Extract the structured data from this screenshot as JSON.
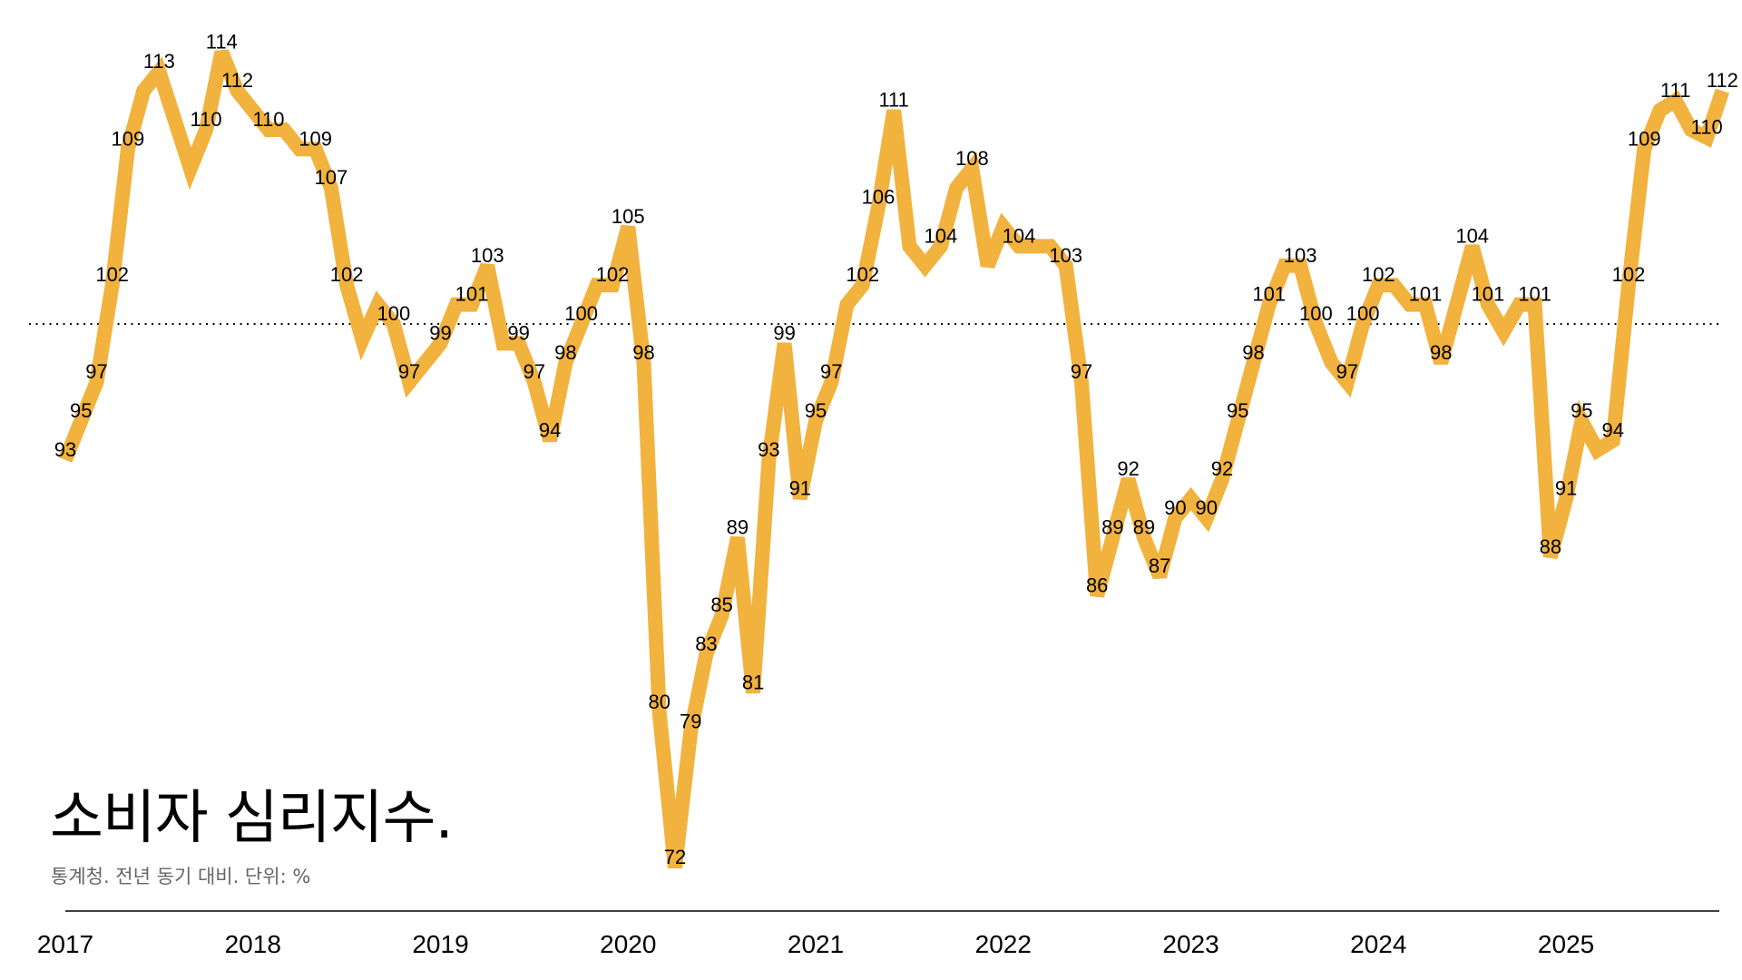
{
  "chart_data": {
    "type": "line",
    "title": "소비자 심리지수.",
    "subtitle": "통계청. 전년 동기 대비. 단위: %",
    "x_start": "2017-01",
    "frequency": "monthly",
    "year_labels": [
      "2017",
      "2018",
      "2019",
      "2020",
      "2021",
      "2022",
      "2023",
      "2024",
      "2025"
    ],
    "reference_line": 100,
    "ylim": [
      70,
      116
    ],
    "line_color": "#F2B23E",
    "values": [
      93,
      95,
      97,
      102,
      109,
      112,
      113,
      110.5,
      108,
      110,
      114,
      112,
      111,
      110,
      110,
      109,
      109,
      107,
      102,
      99.2,
      101,
      100,
      97,
      98,
      99,
      101,
      101,
      103,
      99,
      99,
      97,
      94,
      98,
      100,
      102,
      102,
      105,
      98,
      80,
      72,
      79,
      83,
      85,
      89,
      81,
      93,
      99,
      91,
      95,
      97,
      101,
      102,
      106,
      111,
      104,
      103,
      104,
      107,
      108,
      103,
      105,
      104,
      104,
      104,
      103,
      97,
      86,
      89,
      92,
      89,
      87,
      90,
      91,
      90,
      92,
      95,
      98,
      101,
      103,
      103,
      100,
      98,
      97,
      100,
      102,
      102,
      101,
      101,
      98,
      101,
      104,
      101,
      99.6,
      101,
      101,
      88,
      91,
      95,
      93.5,
      94,
      102,
      109,
      111,
      111.5,
      110,
      109.6,
      112
    ],
    "labels": [
      "93",
      "95",
      "97",
      "102",
      "109",
      null,
      "113",
      null,
      null,
      "110",
      "114",
      "112",
      null,
      "110",
      null,
      null,
      "109",
      "107",
      "102",
      null,
      null,
      "100",
      "97",
      null,
      "99",
      null,
      "101",
      "103",
      null,
      "99",
      "97",
      "94",
      "98",
      "100",
      null,
      "102",
      "105",
      "98",
      "80",
      "72",
      "79",
      "83",
      "85",
      "89",
      "81",
      "93",
      "99",
      "91",
      "95",
      "97",
      null,
      "102",
      "106",
      "111",
      null,
      null,
      "104",
      null,
      "108",
      null,
      null,
      "104",
      null,
      null,
      "103",
      "97",
      "86",
      "89",
      "92",
      "89",
      "87",
      "90",
      null,
      "90",
      "92",
      "95",
      "98",
      "101",
      null,
      "103",
      "100",
      null,
      "97",
      "100",
      "102",
      null,
      null,
      "101",
      "98",
      null,
      "104",
      "101",
      null,
      null,
      "101",
      "88",
      "91",
      "95",
      null,
      "94",
      "102",
      "109",
      null,
      "111",
      null,
      "110",
      "112"
    ]
  }
}
